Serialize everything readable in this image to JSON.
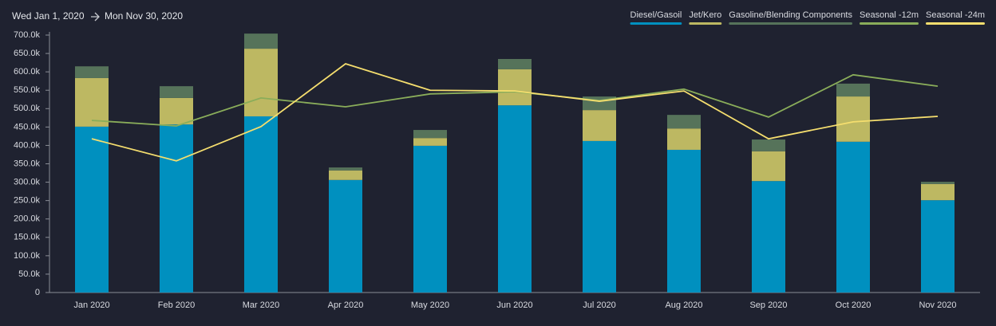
{
  "header": {
    "start": "Wed Jan 1, 2020",
    "end": "Mon Nov 30, 2020"
  },
  "chart_data": {
    "type": "bar",
    "stacked": true,
    "categories": [
      "Jan 2020",
      "Feb 2020",
      "Mar 2020",
      "Apr 2020",
      "May 2020",
      "Jun 2020",
      "Jul 2020",
      "Aug 2020",
      "Sep 2020",
      "Oct 2020",
      "Nov 2020"
    ],
    "series": [
      {
        "name": "Diesel/Gasoil",
        "type": "bar",
        "color": "#0090bf",
        "values": [
          451000,
          457000,
          479000,
          306000,
          399000,
          509000,
          412000,
          388000,
          303000,
          410000,
          251000
        ]
      },
      {
        "name": "Jet/Kero",
        "type": "bar",
        "color": "#bdb862",
        "values": [
          132000,
          72000,
          184000,
          26000,
          21000,
          98000,
          84000,
          58000,
          81000,
          123000,
          44000
        ]
      },
      {
        "name": "Gasoline/Blending Components",
        "type": "bar",
        "color": "#56735a",
        "values": [
          32000,
          32000,
          41000,
          8000,
          22000,
          28000,
          37000,
          37000,
          32000,
          35000,
          6000
        ]
      },
      {
        "name": "Seasonal -12m",
        "type": "line",
        "color": "#8aad5a",
        "values": [
          468000,
          453000,
          529000,
          505000,
          540000,
          546000,
          522000,
          553000,
          477000,
          592000,
          561000
        ]
      },
      {
        "name": "Seasonal -24m",
        "type": "line",
        "color": "#f5de6e",
        "values": [
          418000,
          358000,
          451000,
          622000,
          550000,
          548000,
          520000,
          548000,
          418000,
          464000,
          479000
        ]
      }
    ],
    "ylim": [
      0,
      700000
    ],
    "yticks": [
      0,
      {
        "value": 50000,
        "label": "50.0k"
      },
      {
        "value": 100000,
        "label": "100.0k"
      },
      {
        "value": 150000,
        "label": "150.0k"
      },
      {
        "value": 200000,
        "label": "200.0k"
      },
      {
        "value": 250000,
        "label": "250.0k"
      },
      {
        "value": 300000,
        "label": "300.0k"
      },
      {
        "value": 350000,
        "label": "350.0k"
      },
      {
        "value": 400000,
        "label": "400.0k"
      },
      {
        "value": 450000,
        "label": "450.0k"
      },
      {
        "value": 500000,
        "label": "500.0k"
      },
      {
        "value": 550000,
        "label": "550.0k"
      },
      {
        "value": 600000,
        "label": "600.0k"
      },
      {
        "value": 650000,
        "label": "650.0k"
      },
      {
        "value": 700000,
        "label": "700.0k"
      }
    ],
    "legend": "top-right"
  }
}
